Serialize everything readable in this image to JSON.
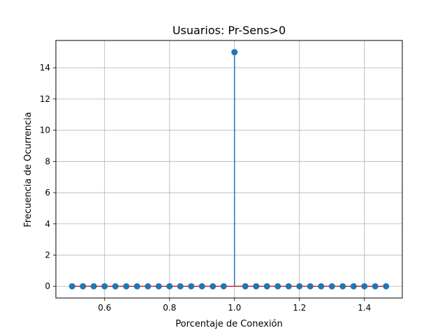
{
  "chart_data": {
    "type": "stem",
    "title": "Usuarios: Pr-Sens>0",
    "xlabel": "Porcentaje de Conexión",
    "ylabel": "Frecuencia de Ocurrencia",
    "xlim": [
      0.45,
      1.5167
    ],
    "ylim": [
      -0.75,
      15.75
    ],
    "xticks": [
      0.6,
      0.8,
      1.0,
      1.2,
      1.4
    ],
    "xtick_labels": [
      "0.6",
      "0.8",
      "1.0",
      "1.2",
      "1.4"
    ],
    "yticks": [
      0,
      2,
      4,
      6,
      8,
      10,
      12,
      14
    ],
    "ytick_labels": [
      "0",
      "2",
      "4",
      "6",
      "8",
      "10",
      "12",
      "14"
    ],
    "grid": true,
    "colors": {
      "marker": "#1f77b4",
      "stem": "#1f77b4",
      "baseline": "#d62728",
      "grid": "#b0b0b0"
    },
    "x": [
      0.5,
      0.5333,
      0.5667,
      0.6,
      0.6333,
      0.6667,
      0.7,
      0.7333,
      0.7667,
      0.8,
      0.8333,
      0.8667,
      0.9,
      0.9333,
      0.9667,
      1.0,
      1.0333,
      1.0667,
      1.1,
      1.1333,
      1.1667,
      1.2,
      1.2333,
      1.2667,
      1.3,
      1.3333,
      1.3667,
      1.4,
      1.4333,
      1.4667
    ],
    "values": [
      0,
      0,
      0,
      0,
      0,
      0,
      0,
      0,
      0,
      0,
      0,
      0,
      0,
      0,
      0,
      15,
      0,
      0,
      0,
      0,
      0,
      0,
      0,
      0,
      0,
      0,
      0,
      0,
      0,
      0
    ]
  }
}
